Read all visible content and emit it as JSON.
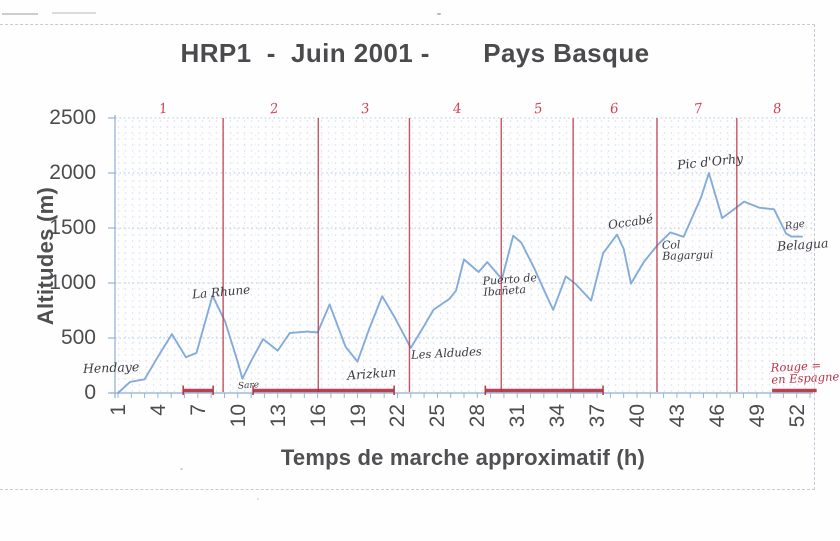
{
  "title": "HRP1  -  Juin 2001 -       Pays Basque",
  "chart_data": {
    "type": "line",
    "title": "HRP1 - Juin 2001 - Pays Basque",
    "xlabel": "Temps de marche approximatif (h)",
    "ylabel": "Altitudes (m)",
    "xlim": [
      1,
      53
    ],
    "ylim": [
      0,
      2500
    ],
    "x_ticks": [
      1,
      4,
      7,
      10,
      13,
      16,
      19,
      22,
      25,
      28,
      31,
      34,
      37,
      40,
      43,
      46,
      49,
      52
    ],
    "y_ticks": [
      0,
      500,
      1000,
      1500,
      2000,
      2500
    ],
    "grid": "horizontal dotted",
    "series": [
      {
        "name": "altitude-profile",
        "color": "#79a5d8",
        "points": [
          [
            1,
            0
          ],
          [
            1.9,
            100
          ],
          [
            2.5,
            115
          ],
          [
            3,
            125
          ],
          [
            4,
            330
          ],
          [
            5.05,
            535
          ],
          [
            6.1,
            325
          ],
          [
            6.9,
            365
          ],
          [
            8.1,
            885
          ],
          [
            9.05,
            650
          ],
          [
            10,
            280
          ],
          [
            10.35,
            130
          ],
          [
            11,
            290
          ],
          [
            11.9,
            490
          ],
          [
            13,
            385
          ],
          [
            13.9,
            545
          ],
          [
            15.2,
            558
          ],
          [
            16,
            550
          ],
          [
            16.9,
            805
          ],
          [
            18.1,
            420
          ],
          [
            19,
            285
          ],
          [
            19.9,
            590
          ],
          [
            20.85,
            880
          ],
          [
            21.8,
            685
          ],
          [
            23,
            410
          ],
          [
            24,
            610
          ],
          [
            24.7,
            755
          ],
          [
            25.4,
            815
          ],
          [
            25.9,
            855
          ],
          [
            26.4,
            930
          ],
          [
            27,
            1215
          ],
          [
            28.1,
            1100
          ],
          [
            28.75,
            1190
          ],
          [
            29.85,
            1035
          ],
          [
            30.7,
            1430
          ],
          [
            31.3,
            1368
          ],
          [
            32.3,
            1130
          ],
          [
            33,
            940
          ],
          [
            33.7,
            755
          ],
          [
            34.65,
            1060
          ],
          [
            35.4,
            990
          ],
          [
            36.55,
            840
          ],
          [
            37.45,
            1270
          ],
          [
            38.5,
            1440
          ],
          [
            39,
            1310
          ],
          [
            39.55,
            995
          ],
          [
            40.5,
            1190
          ],
          [
            41.5,
            1340
          ],
          [
            42.5,
            1460
          ],
          [
            43.5,
            1420
          ],
          [
            44.8,
            1775
          ],
          [
            45.4,
            2000
          ],
          [
            46.4,
            1590
          ],
          [
            48.05,
            1740
          ],
          [
            49.2,
            1685
          ],
          [
            50.3,
            1670
          ],
          [
            51.2,
            1450
          ],
          [
            51.6,
            1422
          ],
          [
            52.4,
            1422
          ]
        ]
      }
    ],
    "stage_divider_hours": [
      8.9,
      16.05,
      22.9,
      29.8,
      35.2,
      41.5,
      47.5
    ],
    "stage_numbers": [
      {
        "label": "1",
        "h": 4.35
      },
      {
        "label": "2",
        "h": 12.7
      },
      {
        "label": "3",
        "h": 19.55
      },
      {
        "label": "4",
        "h": 26.45
      },
      {
        "label": "5",
        "h": 32.55
      },
      {
        "label": "6",
        "h": 38.25
      },
      {
        "label": "7",
        "h": 44.55
      },
      {
        "label": "8",
        "h": 50.55
      }
    ],
    "spain_section_bars": [
      {
        "h1": 5.9,
        "h2": 8.15,
        "caps": true
      },
      {
        "h1": 11.15,
        "h2": 21.75,
        "caps": true
      },
      {
        "h1": 28.6,
        "h2": 37.45,
        "caps": true
      },
      {
        "h1": 50.15,
        "h2": 53.5,
        "caps": false
      }
    ],
    "annotations": [
      {
        "key": "hendaye",
        "lines": [
          "Hendaye"
        ],
        "h": -1.63,
        "alt": 282,
        "size": 12.5,
        "color": "ink",
        "tilt": -2
      },
      {
        "key": "la-rhune",
        "lines": [
          "La Rhune"
        ],
        "h": 6.55,
        "alt": 975,
        "size": 12,
        "color": "ink",
        "tilt": -5
      },
      {
        "key": "sare",
        "lines": [
          "Sare"
        ],
        "h": 10.0,
        "alt": 100,
        "size": 9,
        "color": "ink",
        "tilt": -4
      },
      {
        "key": "arizkun",
        "lines": [
          "Arizkun"
        ],
        "h": 18.2,
        "alt": 228,
        "size": 12.5,
        "color": "ink",
        "tilt": -4
      },
      {
        "key": "les-aldudes",
        "lines": [
          "Les Aldudes"
        ],
        "h": 23.05,
        "alt": 410,
        "size": 11.5,
        "color": "ink",
        "tilt": -3
      },
      {
        "key": "puerto-de-ibaneta",
        "lines": [
          "Puerto de",
          "Ibañeta"
        ],
        "h": 28.4,
        "alt": 1082,
        "size": 11,
        "color": "ink",
        "tilt": -4
      },
      {
        "key": "occabe",
        "lines": [
          "Occabé"
        ],
        "h": 37.8,
        "alt": 1610,
        "size": 12,
        "color": "ink",
        "tilt": -8
      },
      {
        "key": "col-bagargui",
        "lines": [
          "Col",
          "Bagargui"
        ],
        "h": 41.9,
        "alt": 1400,
        "size": 11,
        "color": "ink",
        "tilt": -2
      },
      {
        "key": "pic-d-orhy",
        "lines": [
          "Pic d'Orhy"
        ],
        "h": 43.0,
        "alt": 2155,
        "size": 12.5,
        "color": "ink",
        "tilt": -6
      },
      {
        "key": "rge",
        "lines": [
          "Rge"
        ],
        "h": 51.15,
        "alt": 1565,
        "size": 10,
        "color": "ink",
        "tilt": -8
      },
      {
        "key": "belagua",
        "lines": [
          "Belagua"
        ],
        "h": 50.55,
        "alt": 1400,
        "size": 12.5,
        "color": "ink",
        "tilt": -4
      },
      {
        "key": "rouge-en-espagne",
        "lines": [
          "Rouge =",
          "en Espagne"
        ],
        "h": 50.1,
        "alt": 292,
        "size": 11.5,
        "color": "red",
        "tilt": -3
      }
    ],
    "ink_colors": {
      "curve": "#79a5d8",
      "stage_line": "#bc3649",
      "red_bar": "#ae2e40",
      "stage_number": "#cf4355",
      "printed_text": "#4c4c4f",
      "handwriting": "#3b3b42",
      "axis": "#8fafd1",
      "gridline": "#b4c6db"
    }
  }
}
